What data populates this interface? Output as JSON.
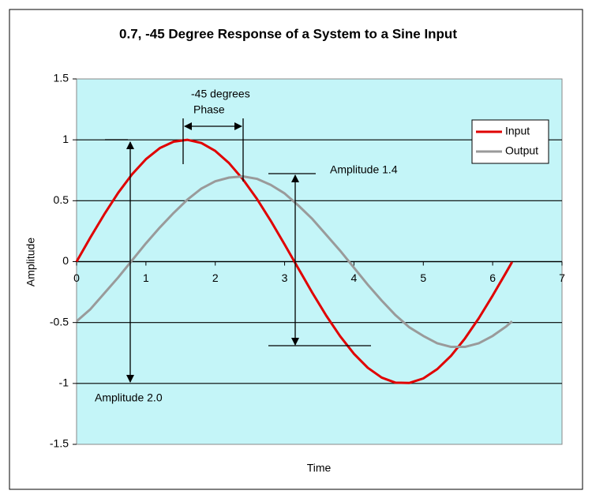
{
  "chart_data": {
    "type": "line",
    "title": "0.7, -45 Degree Response of a System to a Sine Input",
    "xlabel": "Time",
    "ylabel": "Amplitude",
    "x": [
      0,
      0.2,
      0.4,
      0.6,
      0.8,
      1.0,
      1.2,
      1.4,
      1.6,
      1.8,
      2.0,
      2.2,
      2.4,
      2.6,
      2.8,
      3.0,
      3.2,
      3.4,
      3.6,
      3.8,
      4.0,
      4.2,
      4.4,
      4.6,
      4.8,
      5.0,
      5.2,
      5.4,
      5.6,
      5.8,
      6.0,
      6.2,
      6.28
    ],
    "series": [
      {
        "name": "Input",
        "color": "#e00000",
        "values": [
          0,
          0.199,
          0.389,
          0.565,
          0.717,
          0.841,
          0.932,
          0.985,
          1.0,
          0.974,
          0.909,
          0.808,
          0.675,
          0.516,
          0.335,
          0.141,
          -0.058,
          -0.256,
          -0.443,
          -0.612,
          -0.757,
          -0.872,
          -0.952,
          -0.994,
          -0.996,
          -0.959,
          -0.883,
          -0.773,
          -0.631,
          -0.465,
          -0.279,
          -0.083,
          -0.003
        ]
      },
      {
        "name": "Output",
        "color": "#9a9a9a",
        "values": [
          -0.49,
          -0.39,
          -0.26,
          -0.13,
          0.01,
          0.15,
          0.28,
          0.4,
          0.51,
          0.6,
          0.66,
          0.69,
          0.7,
          0.68,
          0.63,
          0.56,
          0.46,
          0.35,
          0.22,
          0.09,
          -0.05,
          -0.19,
          -0.32,
          -0.44,
          -0.54,
          -0.61,
          -0.67,
          -0.7,
          -0.7,
          -0.67,
          -0.61,
          -0.53,
          -0.49
        ]
      }
    ],
    "xlim": [
      0,
      7
    ],
    "xticks": [
      0,
      1,
      2,
      3,
      4,
      5,
      6,
      7
    ],
    "ylim": [
      -1.5,
      1.5
    ],
    "yticks": [
      -1.5,
      -1,
      -0.5,
      0,
      0.5,
      1,
      1.5
    ],
    "grid": true,
    "legend": "upper right",
    "annotations": [
      "-45 degrees",
      "Phase",
      "Amplitude 1.4",
      "Amplitude 2.0"
    ]
  }
}
